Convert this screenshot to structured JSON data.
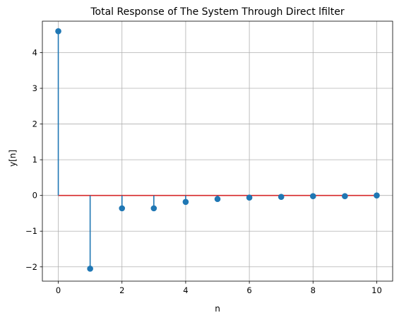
{
  "chart_data": {
    "type": "stem",
    "title": "Total Response of The System Through Direct lfilter",
    "xlabel": "n",
    "ylabel": "y[n]",
    "x": [
      0,
      1,
      2,
      3,
      4,
      5,
      6,
      7,
      8,
      9,
      10
    ],
    "values": [
      4.6,
      -2.05,
      -0.36,
      -0.36,
      -0.18,
      -0.1,
      -0.06,
      -0.04,
      -0.02,
      -0.02,
      0.0
    ],
    "xlim": [
      -0.5,
      10.5
    ],
    "ylim": [
      -2.4,
      4.88
    ],
    "xticks": [
      0,
      2,
      4,
      6,
      8,
      10
    ],
    "yticks": [
      -2,
      -1,
      0,
      1,
      2,
      3,
      4
    ],
    "grid": true,
    "baseline": 0,
    "colors": {
      "stem": "#1f77b4",
      "marker": "#1f77b4",
      "baseline": "#d62728",
      "grid": "#b0b0b0"
    }
  }
}
